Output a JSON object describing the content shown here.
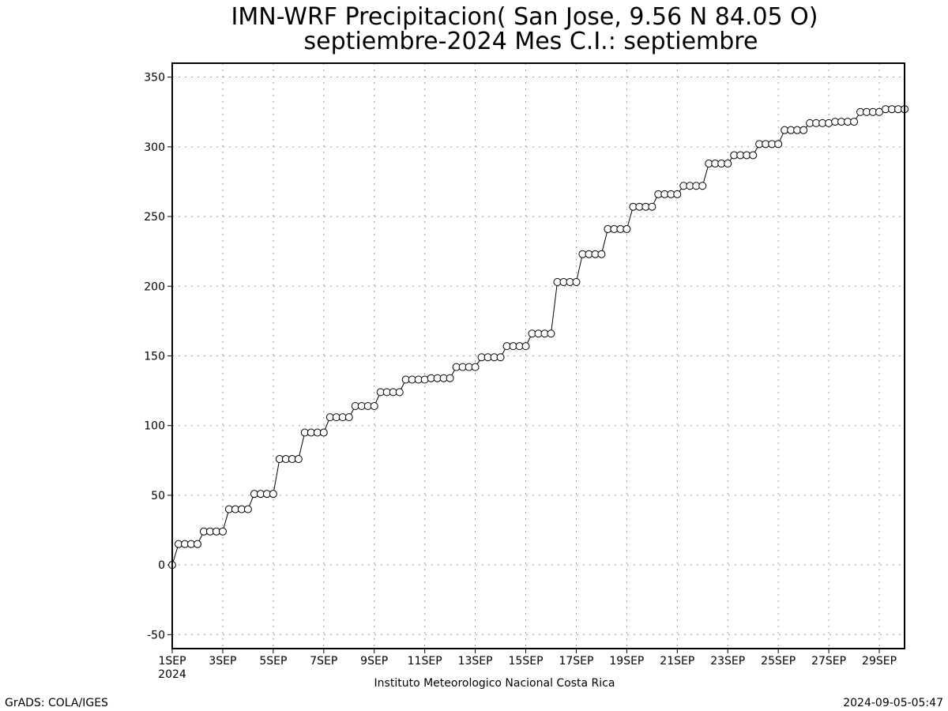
{
  "chart_data": {
    "type": "line",
    "title": "IMN-WRF  Precipitacion( San Jose, 9.56  N 84.05  O)",
    "subtitle": "septiembre-2024 Mes C.I.: septiembre",
    "xlabel": "Instituto Meteorologico Nacional Costa Rica",
    "ylabel": "",
    "xlim": [
      1,
      30
    ],
    "ylim": [
      -60,
      360
    ],
    "grid": true,
    "marker": "open-circle",
    "y_ticks": [
      -50,
      0,
      50,
      100,
      150,
      200,
      250,
      300,
      350
    ],
    "x_ticks": [
      {
        "day": 1,
        "label": "1SEP",
        "sublabel": "2024"
      },
      {
        "day": 3,
        "label": "3SEP"
      },
      {
        "day": 5,
        "label": "5SEP"
      },
      {
        "day": 7,
        "label": "7SEP"
      },
      {
        "day": 9,
        "label": "9SEP"
      },
      {
        "day": 11,
        "label": "11SEP"
      },
      {
        "day": 13,
        "label": "13SEP"
      },
      {
        "day": 15,
        "label": "15SEP"
      },
      {
        "day": 17,
        "label": "17SEP"
      },
      {
        "day": 19,
        "label": "19SEP"
      },
      {
        "day": 21,
        "label": "21SEP"
      },
      {
        "day": 23,
        "label": "23SEP"
      },
      {
        "day": 25,
        "label": "25SEP"
      },
      {
        "day": 27,
        "label": "27SEP"
      },
      {
        "day": 29,
        "label": "29SEP"
      }
    ],
    "x": [
      1,
      1.25,
      1.5,
      1.75,
      2,
      2.25,
      2.5,
      2.75,
      3,
      3.25,
      3.5,
      3.75,
      4,
      4.25,
      4.5,
      4.75,
      5,
      5.25,
      5.5,
      5.75,
      6,
      6.25,
      6.5,
      6.75,
      7,
      7.25,
      7.5,
      7.75,
      8,
      8.25,
      8.5,
      8.75,
      9,
      9.25,
      9.5,
      9.75,
      10,
      10.25,
      10.5,
      10.75,
      11,
      11.25,
      11.5,
      11.75,
      12,
      12.25,
      12.5,
      12.75,
      13,
      13.25,
      13.5,
      13.75,
      14,
      14.25,
      14.5,
      14.75,
      15,
      15.25,
      15.5,
      15.75,
      16,
      16.25,
      16.5,
      16.75,
      17,
      17.25,
      17.5,
      17.75,
      18,
      18.25,
      18.5,
      18.75,
      19,
      19.25,
      19.5,
      19.75,
      20,
      20.25,
      20.5,
      20.75,
      21,
      21.25,
      21.5,
      21.75,
      22,
      22.25,
      22.5,
      22.75,
      23,
      23.25,
      23.5,
      23.75,
      24,
      24.25,
      24.5,
      24.75,
      25,
      25.25,
      25.5,
      25.75,
      26,
      26.25,
      26.5,
      26.75,
      27,
      27.25,
      27.5,
      27.75,
      28,
      28.25,
      28.5,
      28.75,
      29,
      29.25,
      29.5,
      29.75,
      30
    ],
    "values": [
      0,
      15,
      15,
      15,
      15,
      24,
      24,
      24,
      24,
      40,
      40,
      40,
      40,
      51,
      51,
      51,
      51,
      76,
      76,
      76,
      76,
      95,
      95,
      95,
      95,
      106,
      106,
      106,
      106,
      114,
      114,
      114,
      114,
      124,
      124,
      124,
      124,
      133,
      133,
      133,
      133,
      134,
      134,
      134,
      134,
      142,
      142,
      142,
      142,
      149,
      149,
      149,
      149,
      157,
      157,
      157,
      157,
      166,
      166,
      166,
      166,
      203,
      203,
      203,
      203,
      223,
      223,
      223,
      223,
      241,
      241,
      241,
      241,
      257,
      257,
      257,
      257,
      266,
      266,
      266,
      266,
      272,
      272,
      272,
      272,
      288,
      288,
      288,
      288,
      294,
      294,
      294,
      294,
      302,
      302,
      302,
      302,
      312,
      312,
      312,
      312,
      317,
      317,
      317,
      317,
      318,
      318,
      318,
      318,
      325,
      325,
      325,
      325,
      327,
      327,
      327,
      327
    ]
  },
  "footer": {
    "left": "GrADS: COLA/IGES",
    "right": "2024-09-05-05:47"
  }
}
